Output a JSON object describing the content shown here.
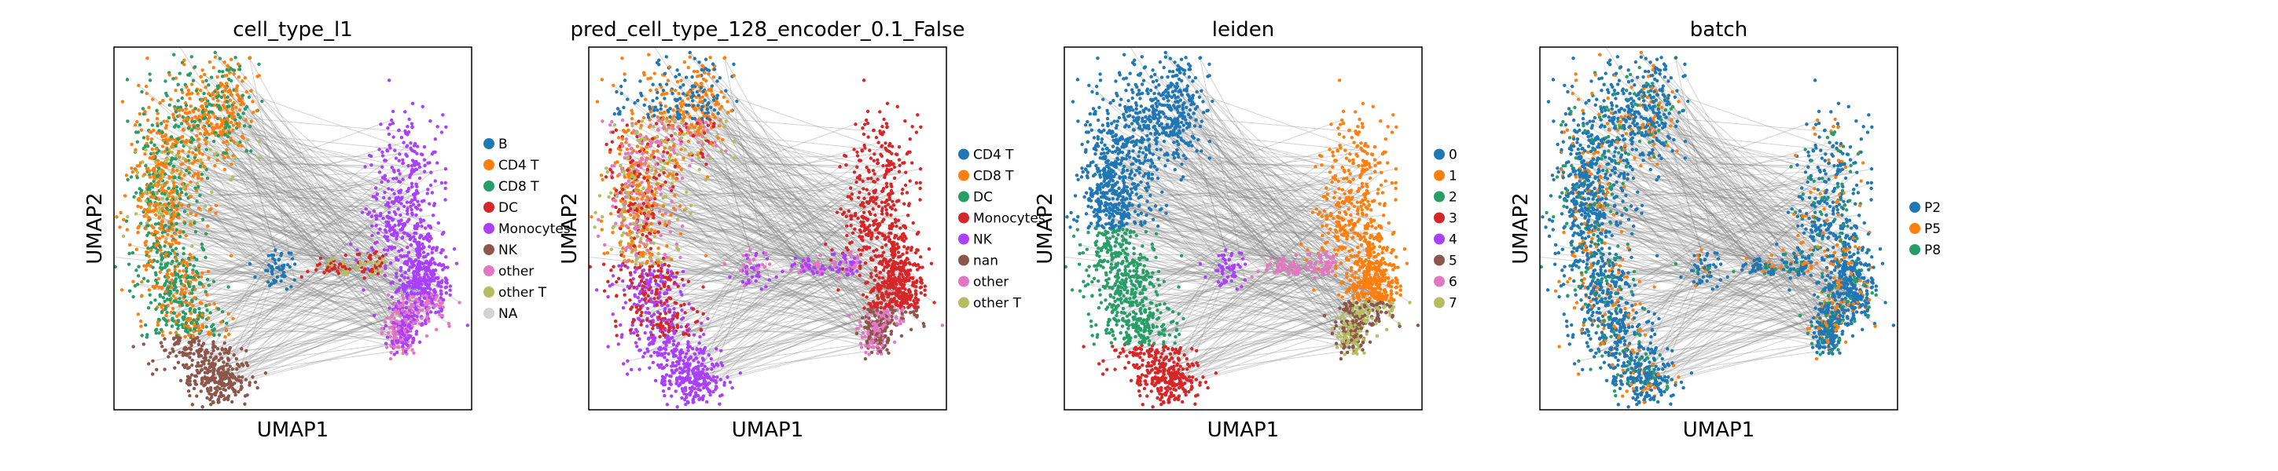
{
  "figure": {
    "panels": [
      {
        "title": "cell_type_l1",
        "xlabel": "UMAP1",
        "ylabel": "UMAP2",
        "legend_placement": "right",
        "legend": [
          {
            "label": "B",
            "color": "#1f77b4"
          },
          {
            "label": "CD4 T",
            "color": "#ff7f0e"
          },
          {
            "label": "CD8 T",
            "color": "#279e68"
          },
          {
            "label": "DC",
            "color": "#d62728"
          },
          {
            "label": "Monocytes",
            "color": "#aa40fc"
          },
          {
            "label": "NK",
            "color": "#8c564b"
          },
          {
            "label": "other",
            "color": "#e377c2"
          },
          {
            "label": "other T",
            "color": "#b5bd61"
          },
          {
            "label": "NA",
            "color": "#d3d3d3"
          }
        ]
      },
      {
        "title": "pred_cell_type_128_encoder_0.1_False",
        "xlabel": "UMAP1",
        "ylabel": "UMAP2",
        "legend_placement": "right",
        "legend": [
          {
            "label": "CD4 T",
            "color": "#1f77b4"
          },
          {
            "label": "CD8 T",
            "color": "#ff7f0e"
          },
          {
            "label": "DC",
            "color": "#279e68"
          },
          {
            "label": "Monocytes",
            "color": "#d62728"
          },
          {
            "label": "NK",
            "color": "#aa40fc"
          },
          {
            "label": "nan",
            "color": "#8c564b"
          },
          {
            "label": "other",
            "color": "#e377c2"
          },
          {
            "label": "other T",
            "color": "#b5bd61"
          }
        ]
      },
      {
        "title": "leiden",
        "xlabel": "UMAP1",
        "ylabel": "UMAP2",
        "legend_placement": "right",
        "legend": [
          {
            "label": "0",
            "color": "#1f77b4"
          },
          {
            "label": "1",
            "color": "#ff7f0e"
          },
          {
            "label": "2",
            "color": "#279e68"
          },
          {
            "label": "3",
            "color": "#d62728"
          },
          {
            "label": "4",
            "color": "#aa40fc"
          },
          {
            "label": "5",
            "color": "#8c564b"
          },
          {
            "label": "6",
            "color": "#e377c2"
          },
          {
            "label": "7",
            "color": "#b5bd61"
          }
        ]
      },
      {
        "title": "batch",
        "xlabel": "UMAP1",
        "ylabel": "UMAP2",
        "legend_placement": "right",
        "legend": [
          {
            "label": "P2",
            "color": "#1f77b4"
          },
          {
            "label": "P5",
            "color": "#ff7f0e"
          },
          {
            "label": "P8",
            "color": "#279e68"
          }
        ]
      }
    ]
  },
  "chart_data": [
    {
      "type": "scatter",
      "title": "cell_type_l1",
      "xlabel": "UMAP1",
      "ylabel": "UMAP2",
      "grid": false,
      "ticks": false,
      "legend_placement": "right",
      "overlay": "graph edges (gray)",
      "categories": [
        "B",
        "CD4 T",
        "CD8 T",
        "DC",
        "Monocytes",
        "NK",
        "other",
        "other T",
        "NA"
      ]
    },
    {
      "type": "scatter",
      "title": "pred_cell_type_128_encoder_0.1_False",
      "xlabel": "UMAP1",
      "ylabel": "UMAP2",
      "grid": false,
      "ticks": false,
      "legend_placement": "right",
      "overlay": "graph edges (gray)",
      "categories": [
        "CD4 T",
        "CD8 T",
        "DC",
        "Monocytes",
        "NK",
        "nan",
        "other",
        "other T"
      ]
    },
    {
      "type": "scatter",
      "title": "leiden",
      "xlabel": "UMAP1",
      "ylabel": "UMAP2",
      "grid": false,
      "ticks": false,
      "legend_placement": "right",
      "overlay": "graph edges (gray)",
      "categories": [
        "0",
        "1",
        "2",
        "3",
        "4",
        "5",
        "6",
        "7"
      ]
    },
    {
      "type": "scatter",
      "title": "batch",
      "xlabel": "UMAP1",
      "ylabel": "UMAP2",
      "grid": false,
      "ticks": false,
      "legend_placement": "right",
      "overlay": "graph edges (gray)",
      "categories": [
        "P2",
        "P5",
        "P8"
      ]
    }
  ]
}
